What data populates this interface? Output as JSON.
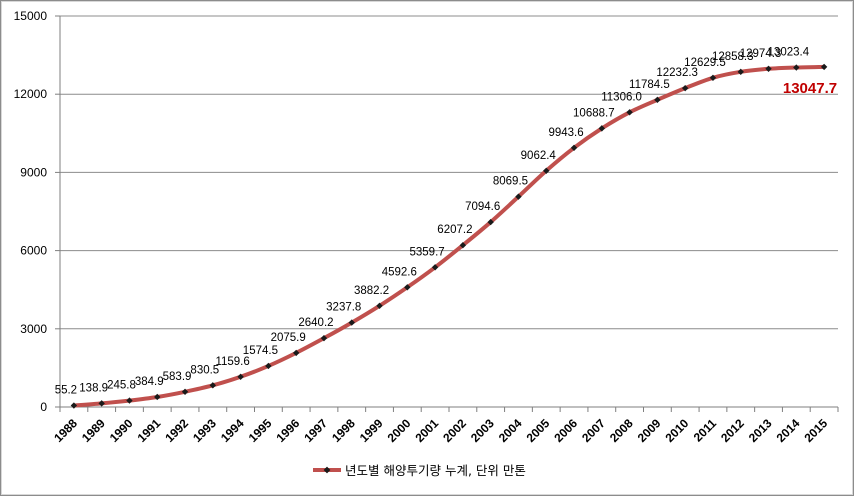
{
  "chart_data": {
    "type": "line",
    "title": "",
    "xlabel": "",
    "ylabel": "",
    "ylim": [
      0,
      15000
    ],
    "yticks": [
      0,
      3000,
      6000,
      9000,
      12000,
      15000
    ],
    "grid": true,
    "legend_position": "bottom",
    "categories": [
      "1988",
      "1989",
      "1990",
      "1991",
      "1992",
      "1993",
      "1994",
      "1995",
      "1996",
      "1997",
      "1998",
      "1999",
      "2000",
      "2001",
      "2002",
      "2003",
      "2004",
      "2005",
      "2006",
      "2007",
      "2008",
      "2009",
      "2010",
      "2011",
      "2012",
      "2013",
      "2014",
      "2015"
    ],
    "series": [
      {
        "name": "년도별 해양투기량 누계, 단위 만톤",
        "color": "#c0504d",
        "marker_color": "#1a1a1a",
        "values": [
          55.2,
          138.9,
          245.8,
          384.9,
          583.9,
          830.5,
          1159.6,
          1574.5,
          2075.9,
          2640.2,
          3237.8,
          3882.2,
          4592.6,
          5359.7,
          6207.2,
          7094.6,
          8069.5,
          9062.4,
          9943.6,
          10688.7,
          11306.0,
          11784.5,
          12232.3,
          12629.5,
          12858.3,
          12974.3,
          13023.4,
          13047.7
        ],
        "labels": [
          "55.2",
          "138.9",
          "245.8",
          "384.9",
          "583.9",
          "830.5",
          "1159.6",
          "1574.5",
          "2075.9",
          "2640.2",
          "3237.8",
          "3882.2",
          "4592.6",
          "5359.7",
          "6207.2",
          "7094.6",
          "8069.5",
          "9062.4",
          "9943.6",
          "10688.7",
          "11306.0",
          "11784.5",
          "12232.3",
          "12629.5",
          "12858.3",
          "12974.3",
          "13023.4",
          "13047.7"
        ]
      }
    ],
    "highlight_color": "#c00000"
  }
}
